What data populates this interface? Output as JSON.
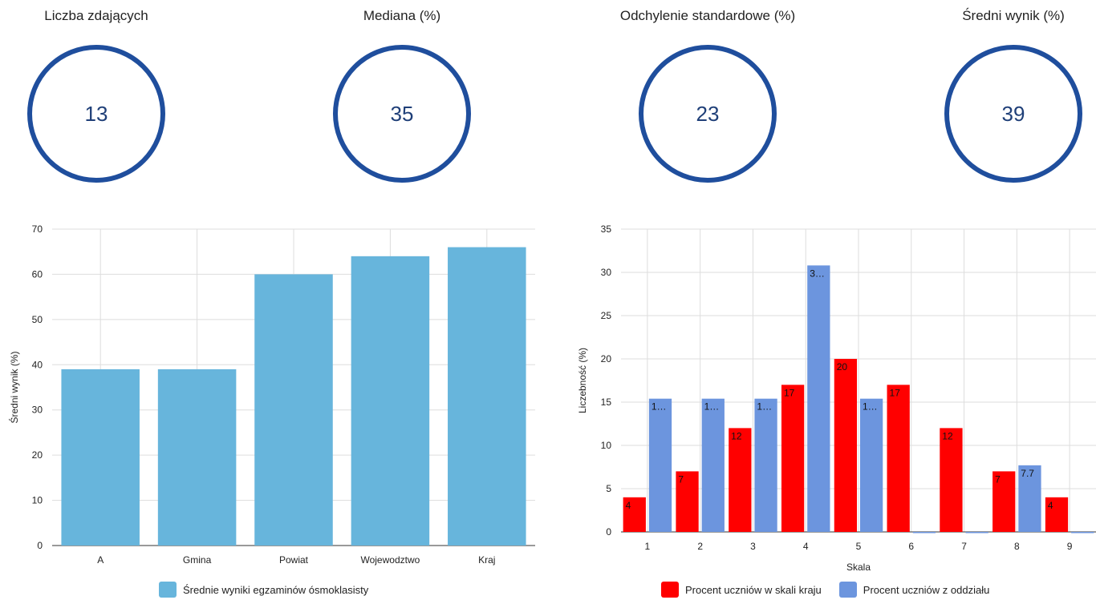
{
  "kpis": [
    {
      "title": "Liczba zdających",
      "value": "13"
    },
    {
      "title": "Mediana (%)",
      "value": "35"
    },
    {
      "title": "Odchylenie standardowe (%)",
      "value": "23"
    },
    {
      "title": "Średni wynik (%)",
      "value": "39"
    }
  ],
  "colors": {
    "ring": "#1f4e9d",
    "ring_text": "#1f3f78",
    "bar_light": "#67b5dc",
    "red": "#ff0000",
    "blue": "#6c95de",
    "grid": "#dddddd",
    "axis": "#333333"
  },
  "chart_data": [
    {
      "type": "bar",
      "categories": [
        "A",
        "Gmina",
        "Powiat",
        "Wojewodztwo",
        "Kraj"
      ],
      "series": [
        {
          "name": "Średnie wyniki egzaminów ósmoklasisty",
          "values": [
            39,
            39,
            60,
            64,
            66
          ]
        }
      ],
      "xlabel": "",
      "ylabel": "Średni wynik (%)",
      "ylim": [
        0,
        70
      ],
      "yticks": [
        0,
        10,
        20,
        30,
        40,
        50,
        60,
        70
      ],
      "grid": true,
      "legend": "bottom"
    },
    {
      "type": "bar",
      "categories": [
        "1",
        "2",
        "3",
        "4",
        "5",
        "6",
        "7",
        "8",
        "9"
      ],
      "series": [
        {
          "name": "Procent uczniów w skali kraju",
          "values": [
            4,
            7,
            12,
            17,
            20,
            17,
            12,
            7,
            4
          ],
          "labels": [
            "4",
            "7",
            "12",
            "17",
            "20",
            "17",
            "12",
            "7",
            "4"
          ]
        },
        {
          "name": "Procent uczniów z oddziału",
          "values": [
            15.4,
            15.4,
            15.4,
            30.8,
            15.4,
            0,
            0,
            7.7,
            0
          ],
          "labels": [
            "1…",
            "1…",
            "1…",
            "3…",
            "1…",
            "",
            "",
            "7.7",
            ""
          ]
        }
      ],
      "xlabel": "Skala",
      "ylabel": "Liczebność (%)",
      "ylim": [
        0,
        35
      ],
      "yticks": [
        0,
        5,
        10,
        15,
        20,
        25,
        30,
        35
      ],
      "grid": true,
      "legend": "bottom"
    }
  ]
}
